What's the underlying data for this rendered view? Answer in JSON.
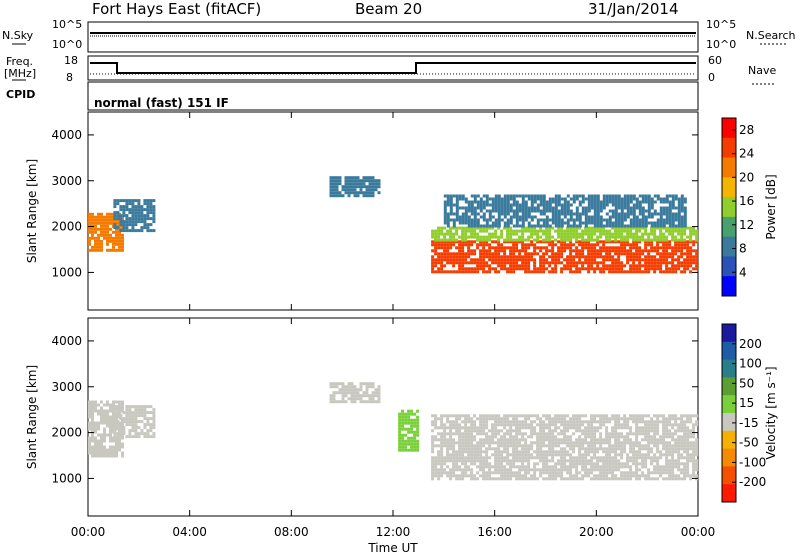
{
  "header": {
    "station": "Fort Hays East (fitACF)",
    "beam": "Beam 20",
    "date": "31/Jan/2014"
  },
  "panels": {
    "nsky_label": "N.Sky",
    "nsearch_label": "N.Search",
    "nsky_ticks": [
      "10^5",
      "10^0"
    ],
    "nsearch_ticks": [
      "10^5",
      "10^0"
    ],
    "freq_label": "Freq.",
    "freq_unit": "[MHz]",
    "freq_ticks": [
      "18",
      "8"
    ],
    "nave_label": "Nave",
    "nave_ticks": [
      "60",
      "0"
    ],
    "cpid_label": "CPID",
    "cpid_text": "normal (fast) 151 IF"
  },
  "colors": {
    "power_scale": [
      "#0000ff",
      "#2a52b8",
      "#3a7a9c",
      "#47a06e",
      "#8fce2c",
      "#f5b400",
      "#f57a00",
      "#f53c00",
      "#ff0000"
    ],
    "velocity_scale": [
      "#1a1aa0",
      "#1e5ca8",
      "#2a7e8a",
      "#5aa030",
      "#7ad03a",
      "#c8c8c0",
      "#f5b000",
      "#f58a00",
      "#f55000",
      "#ff1a00"
    ]
  },
  "chart_data": [
    {
      "type": "heatmap",
      "name": "power",
      "xlabel": "Time UT",
      "ylabel": "Slant Range [km]",
      "colorbar_label": "Power [dB]",
      "xlim": [
        "00:00",
        "24:00"
      ],
      "ylim": [
        180,
        4500
      ],
      "x_ticks": [
        "00:00",
        "04:00",
        "08:00",
        "12:00",
        "16:00",
        "20:00",
        "00:00"
      ],
      "y_ticks": [
        1000,
        2000,
        3000,
        4000
      ],
      "colorbar_ticks": [
        4,
        8,
        12,
        16,
        20,
        24,
        28
      ],
      "colorbar_range": [
        0,
        30
      ],
      "bands": [
        {
          "time": [
            0.0,
            1.3
          ],
          "range": [
            1500,
            2300
          ],
          "value": 24
        },
        {
          "time": [
            1.0,
            2.6
          ],
          "range": [
            1900,
            2600
          ],
          "value": 8
        },
        {
          "time": [
            9.5,
            11.5
          ],
          "range": [
            2700,
            3100
          ],
          "value": 6
        },
        {
          "time": [
            13.5,
            24.0
          ],
          "range": [
            1000,
            1700
          ],
          "value": 28
        },
        {
          "time": [
            13.5,
            24.0
          ],
          "range": [
            1700,
            2000
          ],
          "value": 16
        },
        {
          "time": [
            14.0,
            23.5
          ],
          "range": [
            2000,
            2700
          ],
          "value": 8
        }
      ]
    },
    {
      "type": "heatmap",
      "name": "velocity",
      "xlabel": "Time UT",
      "ylabel": "Slant Range [km]",
      "colorbar_label": "Velocity [m s⁻¹]",
      "xlim": [
        "00:00",
        "24:00"
      ],
      "ylim": [
        180,
        4500
      ],
      "x_ticks": [
        "00:00",
        "04:00",
        "08:00",
        "12:00",
        "16:00",
        "20:00",
        "00:00"
      ],
      "y_ticks": [
        1000,
        2000,
        3000,
        4000
      ],
      "colorbar_ticks": [
        "200",
        "100",
        "50",
        "15",
        "-15",
        "-50",
        "-100",
        "-200"
      ],
      "bands": [
        {
          "time": [
            0.0,
            1.3
          ],
          "range": [
            1500,
            2700
          ],
          "value": 0
        },
        {
          "time": [
            1.0,
            2.6
          ],
          "range": [
            1900,
            2600
          ],
          "value": 0
        },
        {
          "time": [
            9.5,
            11.5
          ],
          "range": [
            2700,
            3100
          ],
          "value": 0
        },
        {
          "time": [
            12.2,
            13.0
          ],
          "range": [
            1600,
            2500
          ],
          "value": 40
        },
        {
          "time": [
            13.5,
            24.0
          ],
          "range": [
            1000,
            2400
          ],
          "value": 0
        }
      ]
    }
  ]
}
